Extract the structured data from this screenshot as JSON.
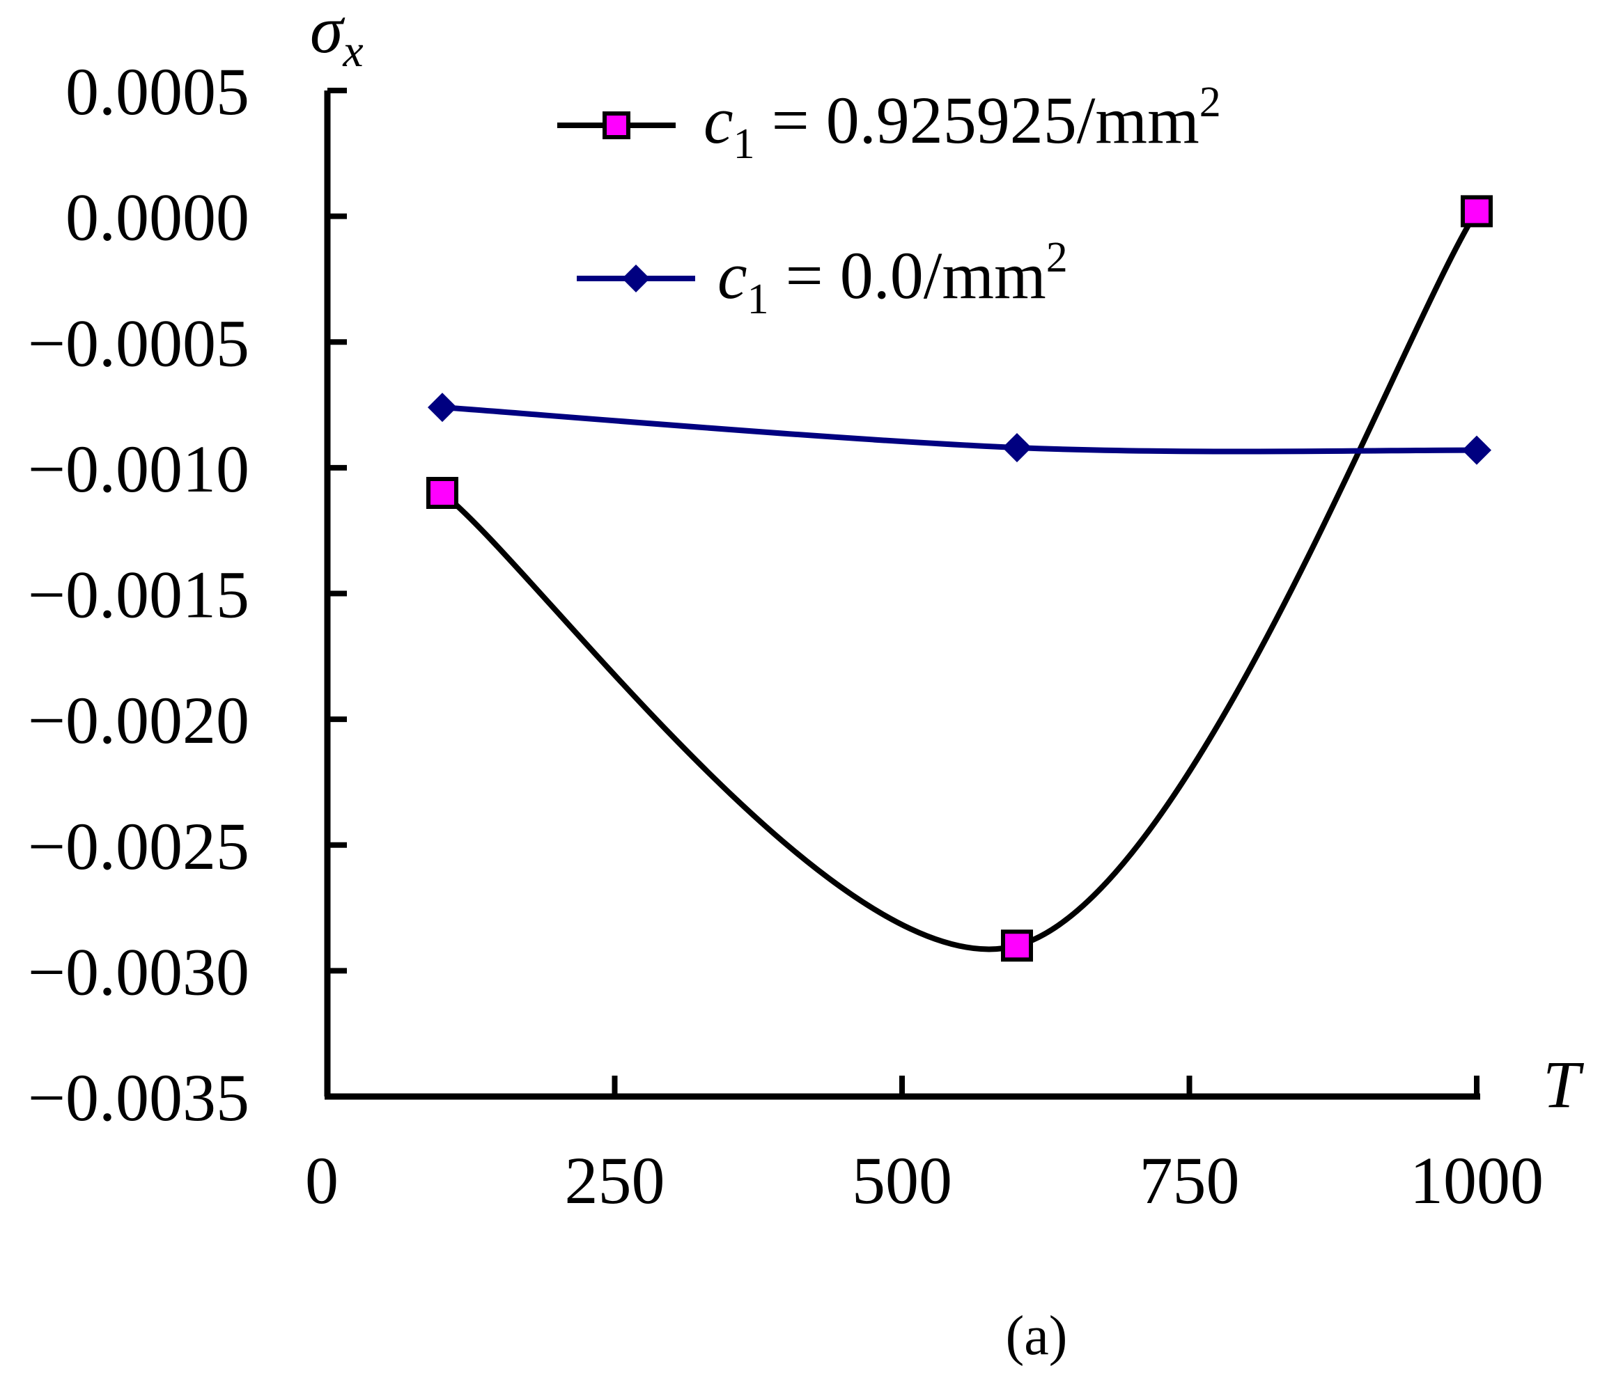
{
  "chart_data": {
    "type": "line",
    "title": "",
    "xlabel": "T",
    "ylabel": "σx",
    "ylabel_main": "σ",
    "ylabel_sub": "x",
    "xlim": [
      0,
      1000
    ],
    "ylim": [
      -0.0035,
      0.0005
    ],
    "x_ticks": [
      0,
      250,
      500,
      750,
      1000
    ],
    "x_tick_labels": [
      "0",
      "250",
      "500",
      "750",
      "1000"
    ],
    "y_ticks": [
      0.0005,
      0.0,
      -0.0005,
      -0.001,
      -0.0015,
      -0.002,
      -0.0025,
      -0.003,
      -0.0035
    ],
    "y_tick_labels": [
      "0.0005",
      "0.0000",
      "−0.0005",
      "−0.0010",
      "−0.0015",
      "−0.0020",
      "−0.0025",
      "−0.0030",
      "−0.0035"
    ],
    "grid": false,
    "legend_position": "top",
    "series": [
      {
        "name": "c1 = 0.925925/mm2",
        "legend_var": "c",
        "legend_sub": "1",
        "legend_eq": " = 0.925925/mm",
        "legend_sup": "2",
        "marker": "square",
        "line_color": "#000000",
        "marker_color": "#ff00ff",
        "x": [
          100,
          600,
          1000
        ],
        "y": [
          -0.0011,
          -0.0029,
          2e-05
        ]
      },
      {
        "name": "c1 = 0.0/mm2",
        "legend_var": "c",
        "legend_sub": "1",
        "legend_eq": " = 0.0/mm",
        "legend_sup": "2",
        "marker": "diamond",
        "line_color": "#000080",
        "marker_color": "#000080",
        "x": [
          100,
          600,
          1000
        ],
        "y": [
          -0.00076,
          -0.00092,
          -0.00093
        ]
      }
    ]
  },
  "caption": "(a)"
}
